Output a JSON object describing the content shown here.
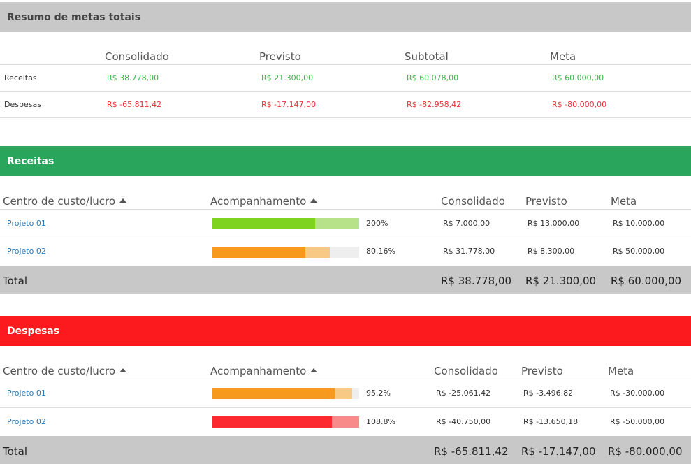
{
  "summary": {
    "title": "Resumo de metas totais",
    "columns": [
      "Consolidado",
      "Previsto",
      "Subtotal",
      "Meta"
    ],
    "rows": [
      {
        "label": "Receitas",
        "values": [
          "R$ 38.778,00",
          "R$ 21.300,00",
          "R$ 60.078,00",
          "R$ 60.000,00"
        ]
      },
      {
        "label": "Despesas",
        "values": [
          "R$ -65.811,42",
          "R$ -17.147,00",
          "R$ -82.958,42",
          "R$ -80.000,00"
        ]
      }
    ]
  },
  "receitas": {
    "title": "Receitas",
    "header_color": "#29a55c",
    "columns": {
      "centro": "Centro de custo/lucro",
      "acomp": "Acompanhamento",
      "consolidado": "Consolidado",
      "previsto": "Previsto",
      "meta": "Meta"
    },
    "rows": [
      {
        "name": "Projeto 01",
        "percent": "200%",
        "consolidado": "R$ 7.000,00",
        "previsto": "R$ 13.000,00",
        "meta": "R$ 10.000,00",
        "dark_fill": 0.7,
        "light_fill": 1.0,
        "dark_color": "#7ed321",
        "light_color": "#b8e28a"
      },
      {
        "name": "Projeto 02",
        "percent": "80.16%",
        "consolidado": "R$ 31.778,00",
        "previsto": "R$ 8.300,00",
        "meta": "R$ 50.000,00",
        "dark_fill": 0.6356,
        "light_fill": 0.8016,
        "dark_color": "#f7991c",
        "light_color": "#f8c985"
      }
    ],
    "total": {
      "label": "Total",
      "consolidado": "R$ 38.778,00",
      "previsto": "R$ 21.300,00",
      "meta": "R$ 60.000,00"
    }
  },
  "despesas": {
    "title": "Despesas",
    "header_color": "#fd1a1e",
    "columns": {
      "centro": "Centro de custo/lucro",
      "acomp": "Acompanhamento",
      "consolidado": "Consolidado",
      "previsto": "Previsto",
      "meta": "Meta"
    },
    "rows": [
      {
        "name": "Projeto 01",
        "percent": "95.2%",
        "consolidado": "R$ -25.061,42",
        "previsto": "R$ -3.496,82",
        "meta": "R$ -30.000,00",
        "dark_fill": 0.8354,
        "light_fill": 0.952,
        "dark_color": "#f7991c",
        "light_color": "#f8c985"
      },
      {
        "name": "Projeto 02",
        "percent": "108.8%",
        "consolidado": "R$ -40.750,00",
        "previsto": "R$ -13.650,18",
        "meta": "R$ -50.000,00",
        "dark_fill": 0.815,
        "light_fill": 1.0,
        "dark_color": "#fc2a2e",
        "light_color": "#f88a8a"
      }
    ],
    "total": {
      "label": "Total",
      "consolidado": "R$ -65.811,42",
      "previsto": "R$ -17.147,00",
      "meta": "R$ -80.000,00"
    }
  }
}
